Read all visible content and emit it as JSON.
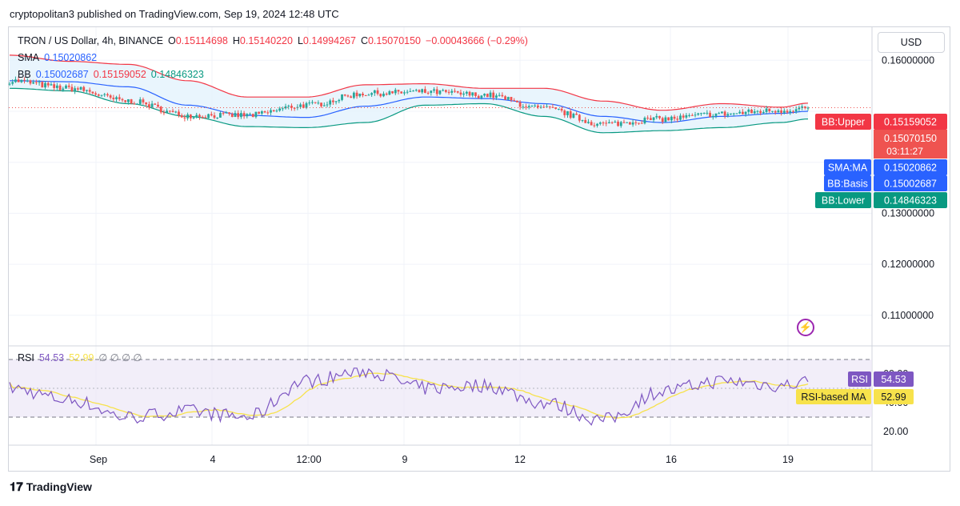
{
  "header": {
    "published": "cryptopolitan3 published on TradingView.com, Sep 19, 2024 12:48 UTC"
  },
  "legend": {
    "symbol": "TRON / US Dollar, 4h, BINANCE",
    "o_label": "O",
    "o_value": "0.15114698",
    "h_label": "H",
    "h_value": "0.15140220",
    "l_label": "L",
    "l_value": "0.14994267",
    "c_label": "C",
    "c_value": "0.15070150",
    "change": "−0.00043666 (−0.29%)",
    "sma_label": "SMA",
    "sma_value": "0.15020862",
    "bb_label": "BB",
    "bb_basis": "0.15002687",
    "bb_upper": "0.15159052",
    "bb_lower": "0.14846323",
    "rsi_label": "RSI",
    "rsi_value": "54.53",
    "rsi_ma_value": "52.99",
    "rsi_extra": "∅ ∅ ∅ ∅"
  },
  "currency_button": "USD",
  "price_axis": [
    "0.16000000",
    "0.13000000",
    "0.12000000",
    "0.11000000"
  ],
  "rsi_axis": [
    "60.00",
    "40.00",
    "20.00"
  ],
  "time_axis": [
    "Sep",
    "4",
    "12:00",
    "9",
    "12",
    "16",
    "19"
  ],
  "badges": {
    "bb_upper_label": "BB:Upper",
    "bb_upper_value": "0.15159052",
    "close_value": "0.15070150",
    "countdown": "03:11:27",
    "sma_label": "SMA:MA",
    "sma_value": "0.15020862",
    "basis_label": "BB:Basis",
    "basis_value": "0.15002687",
    "lower_label": "BB:Lower",
    "lower_value": "0.14846323",
    "rsi_label": "RSI",
    "rsi_value": "54.53",
    "rsi_ma_label": "RSI-based MA",
    "rsi_ma_value": "52.99"
  },
  "colors": {
    "up": "#26a69a",
    "down": "#ef5350",
    "bb_upper": "#f23645",
    "bb_lower": "#089981",
    "basis": "#2962ff",
    "rsi": "#7e57c2",
    "rsi_ma": "#f7e24b",
    "bb_fill": "#e3f2fd",
    "rsi_band": "#ede7f6"
  },
  "footer": {
    "brand": "TradingView"
  },
  "chart_data": {
    "type": "candlestick",
    "timeframe": "4h",
    "price_range": [
      0.104,
      0.1668
    ],
    "x_labels": [
      "Sep",
      "4",
      "12:00",
      "9",
      "12",
      "16",
      "19"
    ],
    "key_points": [
      {
        "i": 0,
        "close": 0.156,
        "upper": 0.161,
        "basis": 0.156,
        "lower": 0.1545,
        "rsi": 50
      },
      {
        "i": 20,
        "close": 0.1545,
        "upper": 0.1598,
        "basis": 0.1558,
        "lower": 0.154,
        "rsi": 42
      },
      {
        "i": 40,
        "close": 0.152,
        "upper": 0.1592,
        "basis": 0.1548,
        "lower": 0.1515,
        "rsi": 30
      },
      {
        "i": 60,
        "close": 0.1492,
        "upper": 0.156,
        "basis": 0.1512,
        "lower": 0.149,
        "rsi": 34
      },
      {
        "i": 80,
        "close": 0.1492,
        "upper": 0.1528,
        "basis": 0.1492,
        "lower": 0.147,
        "rsi": 30
      },
      {
        "i": 100,
        "close": 0.1512,
        "upper": 0.1528,
        "basis": 0.1488,
        "lower": 0.1468,
        "rsi": 55
      },
      {
        "i": 120,
        "close": 0.1535,
        "upper": 0.1552,
        "basis": 0.151,
        "lower": 0.1478,
        "rsi": 62
      },
      {
        "i": 140,
        "close": 0.1538,
        "upper": 0.1554,
        "basis": 0.1528,
        "lower": 0.1512,
        "rsi": 50
      },
      {
        "i": 160,
        "close": 0.1532,
        "upper": 0.1545,
        "basis": 0.1525,
        "lower": 0.1515,
        "rsi": 52
      },
      {
        "i": 180,
        "close": 0.1505,
        "upper": 0.1545,
        "basis": 0.1515,
        "lower": 0.149,
        "rsi": 40
      },
      {
        "i": 200,
        "close": 0.1475,
        "upper": 0.152,
        "basis": 0.149,
        "lower": 0.1458,
        "rsi": 28
      },
      {
        "i": 220,
        "close": 0.1485,
        "upper": 0.1502,
        "basis": 0.1478,
        "lower": 0.1462,
        "rsi": 48
      },
      {
        "i": 240,
        "close": 0.1495,
        "upper": 0.1515,
        "basis": 0.149,
        "lower": 0.1468,
        "rsi": 55
      },
      {
        "i": 260,
        "close": 0.1502,
        "upper": 0.1508,
        "basis": 0.1496,
        "lower": 0.1478,
        "rsi": 52
      },
      {
        "i": 269,
        "close": 0.1507,
        "upper": 0.1516,
        "basis": 0.15,
        "lower": 0.1485,
        "rsi": 54.53
      }
    ],
    "last": {
      "open": 0.15114698,
      "high": 0.1514022,
      "low": 0.14994267,
      "close": 0.1507015
    },
    "sma": 0.15020862,
    "bb": {
      "basis": 0.15002687,
      "upper": 0.15159052,
      "lower": 0.14846323
    },
    "rsi": {
      "value": 54.53,
      "ma": 52.99,
      "upper_band": 70,
      "lower_band": 30,
      "range": [
        15,
        75
      ]
    }
  }
}
